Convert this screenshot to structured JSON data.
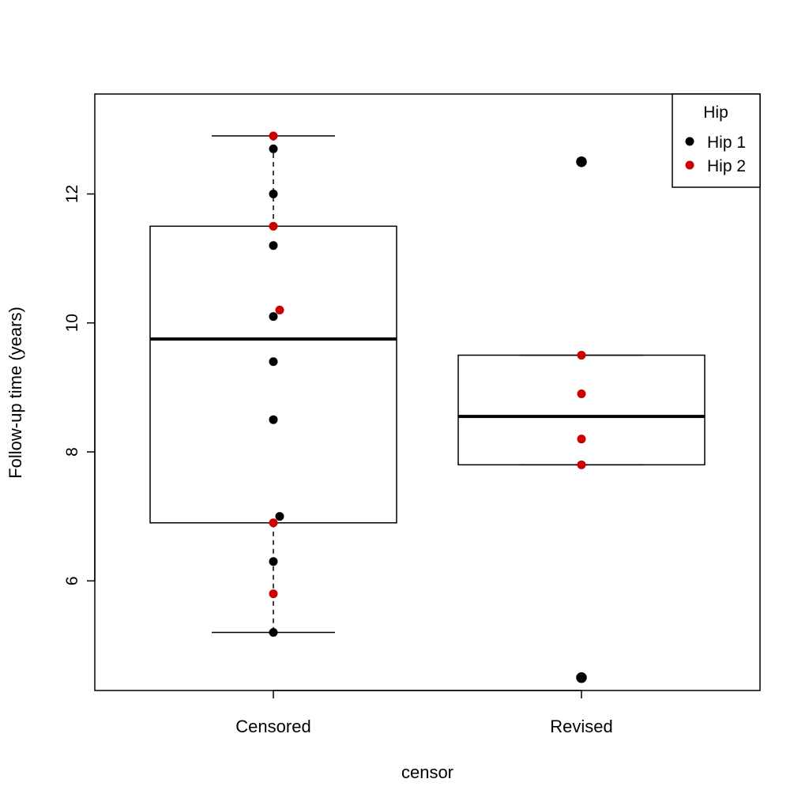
{
  "chart_data": {
    "type": "box",
    "title": "",
    "xlabel": "censor",
    "ylabel": "Follow-up time (years)",
    "ylim": [
      4.3,
      13.55
    ],
    "yticks": [
      6,
      8,
      10,
      12
    ],
    "grid": false,
    "categories": [
      "Censored",
      "Revised"
    ],
    "boxes": [
      {
        "category": "Censored",
        "whisker_low": 5.2,
        "q1": 6.9,
        "median": 9.75,
        "q3": 11.5,
        "whisker_high": 12.9
      },
      {
        "category": "Revised",
        "whisker_low": 7.8,
        "q1": 7.8,
        "median": 8.55,
        "q3": 9.5,
        "whisker_high": 9.5
      }
    ],
    "outliers": [
      {
        "category": "Revised",
        "y": 12.5
      },
      {
        "category": "Revised",
        "y": 4.5
      }
    ],
    "legend": {
      "title": "Hip",
      "position": "top-right",
      "entries": [
        {
          "label": "Hip 1",
          "color": "#000000"
        },
        {
          "label": "Hip 2",
          "color": "#cc0000"
        }
      ]
    },
    "series": [
      {
        "name": "Hip 1",
        "color": "#000000",
        "points": [
          {
            "category": "Censored",
            "y": 12.7
          },
          {
            "category": "Censored",
            "y": 12.0
          },
          {
            "category": "Censored",
            "y": 11.2
          },
          {
            "category": "Censored",
            "y": 10.1
          },
          {
            "category": "Censored",
            "y": 9.4
          },
          {
            "category": "Censored",
            "y": 8.5
          },
          {
            "category": "Censored",
            "y": 7.0
          },
          {
            "category": "Censored",
            "y": 6.3
          },
          {
            "category": "Censored",
            "y": 5.2
          },
          {
            "category": "Revised",
            "y": 12.5
          },
          {
            "category": "Revised",
            "y": 4.5
          }
        ]
      },
      {
        "name": "Hip 2",
        "color": "#cc0000",
        "points": [
          {
            "category": "Censored",
            "y": 12.9
          },
          {
            "category": "Censored",
            "y": 11.5
          },
          {
            "category": "Censored",
            "y": 10.2
          },
          {
            "category": "Censored",
            "y": 6.9
          },
          {
            "category": "Censored",
            "y": 5.8
          },
          {
            "category": "Revised",
            "y": 9.5
          },
          {
            "category": "Revised",
            "y": 8.9
          },
          {
            "category": "Revised",
            "y": 8.2
          },
          {
            "category": "Revised",
            "y": 7.8
          }
        ]
      }
    ]
  }
}
